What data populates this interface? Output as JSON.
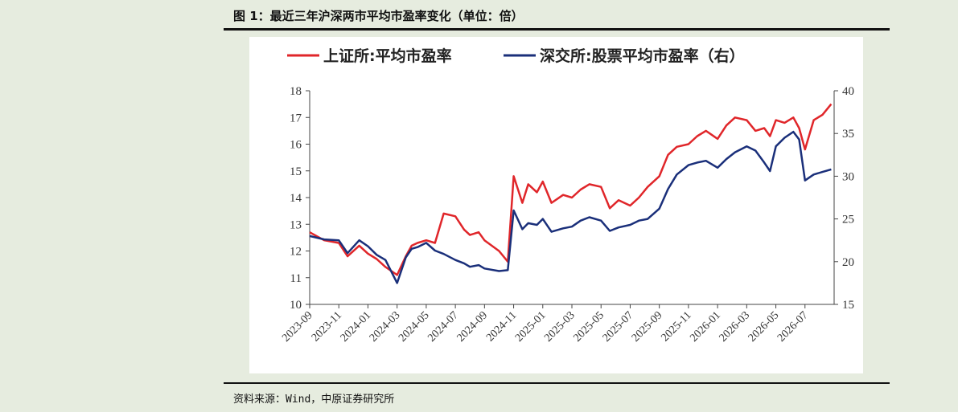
{
  "figure": {
    "title": "图 1：最近三年沪深两市平均市盈率变化（单位：倍）",
    "source": "资料来源：Wind，中原证券研究所"
  },
  "colors": {
    "series_left": "#e0262a",
    "series_right": "#1a2f7a",
    "axis": "#444444"
  },
  "chart_data": {
    "type": "line",
    "title": "",
    "xlabel": "",
    "ylabel": "",
    "ylim": [
      10,
      18
    ],
    "ylim_right": [
      15,
      40
    ],
    "yticks": [
      10,
      11,
      12,
      13,
      14,
      15,
      16,
      17,
      18
    ],
    "yticks_right": [
      15,
      20,
      25,
      30,
      35,
      40
    ],
    "x_tick_labels": [
      "2023-09",
      "2023-11",
      "2024-01",
      "2024-03",
      "2024-05",
      "2024-07",
      "2024-09",
      "2024-11",
      "2025-01",
      "2025-03",
      "2025-05",
      "2025-07",
      "2025-09",
      "2025-11",
      "2026-01",
      "2026-03",
      "2026-05",
      "2026-07"
    ],
    "legend_position": "top",
    "grid": false,
    "series": [
      {
        "name": "上证所:平均市盈率",
        "axis": "left",
        "x": [
          0,
          0.5,
          1,
          1.3,
          1.7,
          2,
          2.3,
          2.6,
          3,
          3.3,
          3.5,
          3.7,
          4,
          4.3,
          4.6,
          5,
          5.3,
          5.5,
          5.8,
          6,
          6.5,
          6.8,
          7,
          7.3,
          7.5,
          7.8,
          8,
          8.3,
          8.7,
          9,
          9.3,
          9.6,
          10,
          10.3,
          10.6,
          11,
          11.3,
          11.6,
          12,
          12.3,
          12.6,
          13,
          13.3,
          13.6,
          14,
          14.3,
          14.6,
          15,
          15.3,
          15.6,
          15.8,
          16,
          16.3,
          16.6,
          16.8,
          17,
          17.3,
          17.6,
          17.9
        ],
        "values": [
          12.7,
          12.4,
          12.3,
          11.8,
          12.2,
          11.9,
          11.7,
          11.4,
          11.1,
          11.8,
          12.2,
          12.3,
          12.4,
          12.3,
          13.4,
          13.3,
          12.8,
          12.6,
          12.7,
          12.4,
          12.0,
          11.6,
          14.8,
          13.8,
          14.5,
          14.2,
          14.6,
          13.8,
          14.1,
          14.0,
          14.3,
          14.5,
          14.4,
          13.6,
          13.9,
          13.7,
          14.0,
          14.4,
          14.8,
          15.6,
          15.9,
          16.0,
          16.3,
          16.5,
          16.2,
          16.7,
          17.0,
          16.9,
          16.5,
          16.6,
          16.3,
          16.9,
          16.8,
          17.0,
          16.6,
          15.8,
          16.9,
          17.1,
          17.5
        ]
      },
      {
        "name": "深交所:股票平均市盈率（右）",
        "axis": "right",
        "x": [
          0,
          0.5,
          1,
          1.3,
          1.7,
          2,
          2.3,
          2.6,
          3,
          3.3,
          3.5,
          3.7,
          4,
          4.3,
          4.6,
          5,
          5.3,
          5.5,
          5.8,
          6,
          6.5,
          6.8,
          7,
          7.3,
          7.5,
          7.8,
          8,
          8.3,
          8.7,
          9,
          9.3,
          9.6,
          10,
          10.3,
          10.6,
          11,
          11.3,
          11.6,
          12,
          12.3,
          12.6,
          13,
          13.3,
          13.6,
          14,
          14.3,
          14.6,
          15,
          15.3,
          15.6,
          15.8,
          16,
          16.3,
          16.6,
          16.8,
          17,
          17.3,
          17.6,
          17.9
        ],
        "values": [
          23.0,
          22.6,
          22.5,
          21.0,
          22.5,
          21.8,
          20.8,
          20.2,
          17.5,
          20.5,
          21.5,
          21.7,
          22.2,
          21.3,
          20.9,
          20.2,
          19.8,
          19.4,
          19.6,
          19.2,
          18.9,
          19.0,
          26.0,
          23.8,
          24.5,
          24.3,
          25.0,
          23.5,
          23.9,
          24.1,
          24.8,
          25.2,
          24.8,
          23.6,
          24.0,
          24.3,
          24.8,
          25.0,
          26.2,
          28.5,
          30.2,
          31.3,
          31.6,
          31.8,
          31.0,
          32.0,
          32.8,
          33.5,
          33.0,
          31.6,
          30.6,
          33.5,
          34.5,
          35.2,
          34.3,
          29.5,
          30.2,
          30.5,
          30.8
        ]
      }
    ]
  }
}
